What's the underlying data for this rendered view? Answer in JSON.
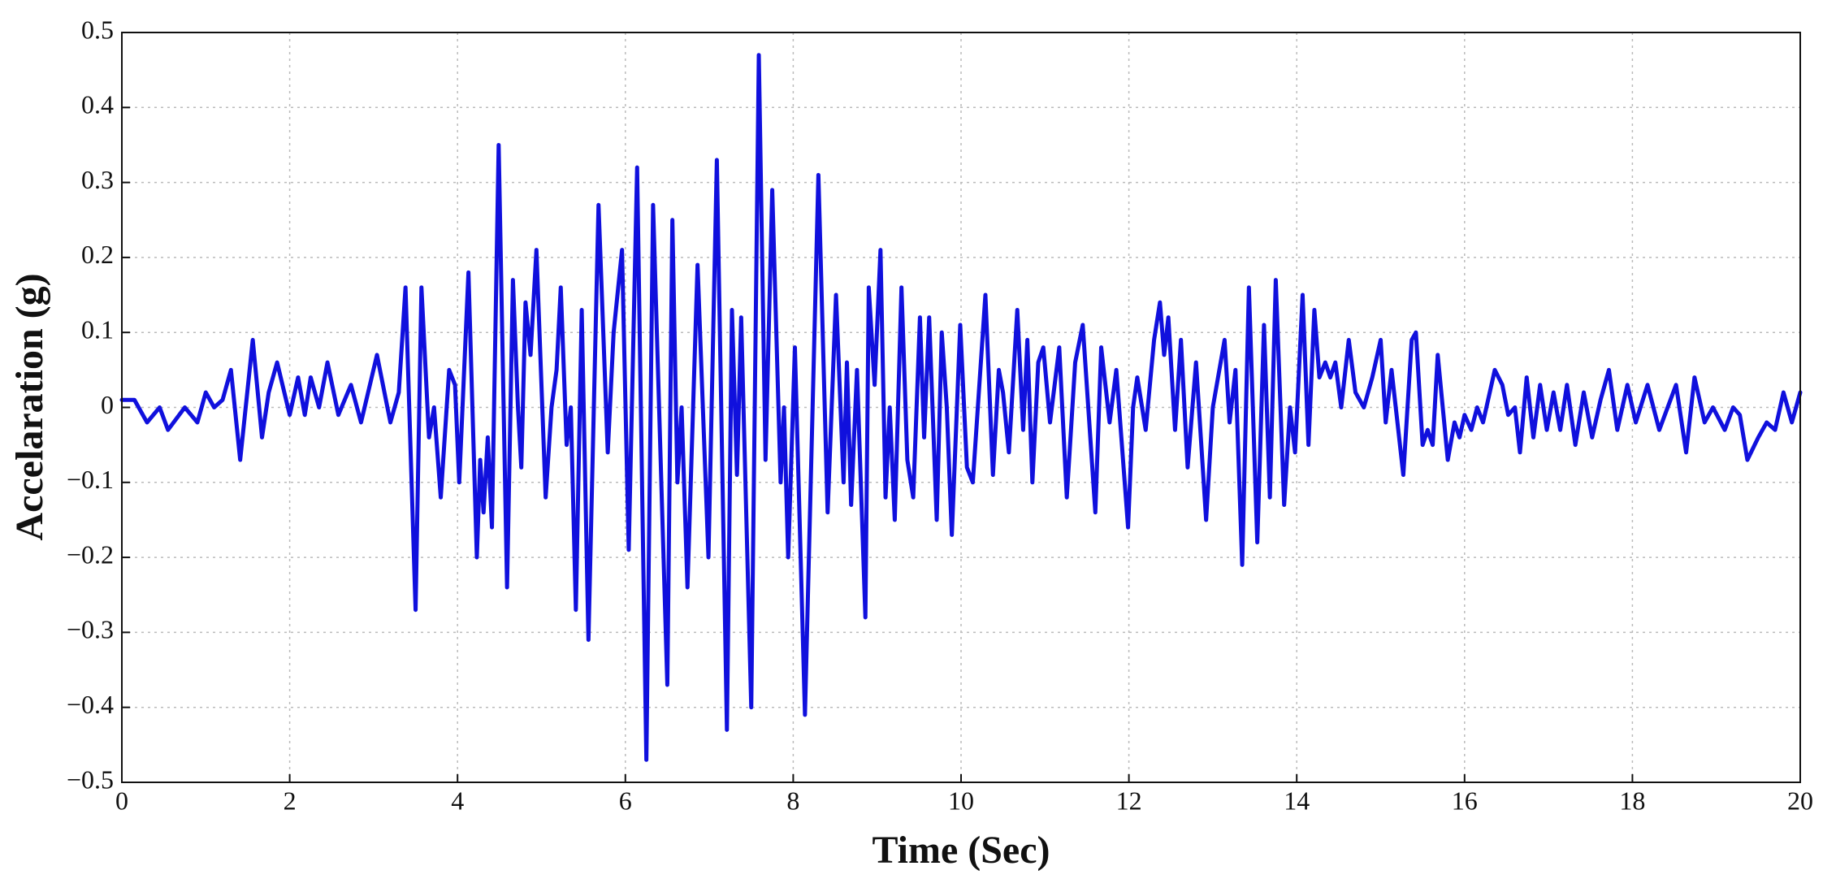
{
  "chart_data": {
    "type": "line",
    "xlabel": "Time (Sec)",
    "ylabel": "Accelaration (g)",
    "color": "#1010dd",
    "grid": true,
    "xlim": [
      0,
      20
    ],
    "ylim": [
      -0.5,
      0.5
    ],
    "xticks": [
      0,
      2,
      4,
      6,
      8,
      10,
      12,
      14,
      16,
      18,
      20
    ],
    "yticks": [
      {
        "value": -0.5,
        "label": "−0.5"
      },
      {
        "value": -0.4,
        "label": "−0.4"
      },
      {
        "value": -0.3,
        "label": "−0.3"
      },
      {
        "value": -0.2,
        "label": "−0.2"
      },
      {
        "value": -0.1,
        "label": "−0.1"
      },
      0,
      0.1,
      0.2,
      0.3,
      0.4,
      0.5
    ],
    "x": [
      0,
      0.15,
      0.3,
      0.45,
      0.55,
      0.75,
      0.9,
      1.0,
      1.1,
      1.2,
      1.3,
      1.41,
      1.56,
      1.67,
      1.75,
      1.85,
      2.0,
      2.1,
      2.18,
      2.25,
      2.35,
      2.45,
      2.58,
      2.73,
      2.85,
      3.04,
      3.2,
      3.3,
      3.38,
      3.5,
      3.57,
      3.66,
      3.72,
      3.8,
      3.9,
      3.97,
      4.02,
      4.13,
      4.23,
      4.27,
      4.31,
      4.36,
      4.41,
      4.49,
      4.59,
      4.66,
      4.72,
      4.76,
      4.81,
      4.87,
      4.94,
      5.05,
      5.12,
      5.18,
      5.23,
      5.3,
      5.35,
      5.41,
      5.48,
      5.56,
      5.68,
      5.79,
      5.86,
      5.96,
      6.04,
      6.14,
      6.25,
      6.33,
      6.5,
      6.56,
      6.62,
      6.67,
      6.74,
      6.86,
      6.99,
      7.09,
      7.21,
      7.27,
      7.33,
      7.38,
      7.5,
      7.59,
      7.67,
      7.75,
      7.85,
      7.89,
      7.94,
      8.02,
      8.14,
      8.3,
      8.41,
      8.51,
      8.6,
      8.64,
      8.69,
      8.76,
      8.86,
      8.9,
      8.97,
      9.04,
      9.1,
      9.15,
      9.21,
      9.29,
      9.36,
      9.43,
      9.51,
      9.56,
      9.62,
      9.71,
      9.77,
      9.83,
      9.89,
      9.99,
      10.07,
      10.14,
      10.29,
      10.38,
      10.45,
      10.5,
      10.57,
      10.67,
      10.74,
      10.79,
      10.85,
      10.92,
      10.98,
      11.06,
      11.17,
      11.26,
      11.36,
      11.45,
      11.6,
      11.67,
      11.77,
      11.85,
      11.99,
      12.05,
      12.1,
      12.2,
      12.3,
      12.37,
      12.42,
      12.47,
      12.55,
      12.62,
      12.7,
      12.8,
      12.92,
      13.0,
      13.14,
      13.2,
      13.27,
      13.35,
      13.43,
      13.53,
      13.61,
      13.68,
      13.75,
      13.85,
      13.92,
      13.98,
      14.07,
      14.14,
      14.21,
      14.27,
      14.34,
      14.4,
      14.46,
      14.53,
      14.62,
      14.7,
      14.8,
      14.9,
      15.0,
      15.06,
      15.13,
      15.27,
      15.37,
      15.42,
      15.5,
      15.56,
      15.62,
      15.68,
      15.8,
      15.88,
      15.94,
      16.0,
      16.08,
      16.15,
      16.22,
      16.28,
      16.36,
      16.45,
      16.52,
      16.6,
      16.66,
      16.74,
      16.82,
      16.9,
      16.98,
      17.06,
      17.14,
      17.22,
      17.32,
      17.42,
      17.52,
      17.62,
      17.72,
      17.82,
      17.94,
      18.04,
      18.18,
      18.32,
      18.52,
      18.64,
      18.74,
      18.86,
      18.96,
      19.1,
      19.2,
      19.28,
      19.37,
      19.5,
      19.6,
      19.7,
      19.8,
      19.9,
      20.0
    ],
    "values": [
      0.01,
      0.01,
      -0.02,
      0.0,
      -0.03,
      0.0,
      -0.02,
      0.02,
      0.0,
      0.01,
      0.05,
      -0.07,
      0.09,
      -0.04,
      0.02,
      0.06,
      -0.01,
      0.04,
      -0.01,
      0.04,
      0.0,
      0.06,
      -0.01,
      0.03,
      -0.02,
      0.07,
      -0.02,
      0.02,
      0.16,
      -0.27,
      0.16,
      -0.04,
      0.0,
      -0.12,
      0.05,
      0.03,
      -0.1,
      0.18,
      -0.2,
      -0.07,
      -0.14,
      -0.04,
      -0.16,
      0.35,
      -0.24,
      0.17,
      0.0,
      -0.08,
      0.14,
      0.07,
      0.21,
      -0.12,
      0.0,
      0.05,
      0.16,
      -0.05,
      0.0,
      -0.27,
      0.13,
      -0.31,
      0.27,
      -0.06,
      0.1,
      0.21,
      -0.19,
      0.32,
      -0.47,
      0.27,
      -0.37,
      0.25,
      -0.1,
      0.0,
      -0.24,
      0.19,
      -0.2,
      0.33,
      -0.43,
      0.13,
      -0.09,
      0.12,
      -0.4,
      0.47,
      -0.07,
      0.29,
      -0.1,
      0.0,
      -0.2,
      0.08,
      -0.41,
      0.31,
      -0.14,
      0.15,
      -0.1,
      0.06,
      -0.13,
      0.05,
      -0.28,
      0.16,
      0.03,
      0.21,
      -0.12,
      0.0,
      -0.15,
      0.16,
      -0.07,
      -0.12,
      0.12,
      -0.04,
      0.12,
      -0.15,
      0.1,
      0.0,
      -0.17,
      0.11,
      -0.08,
      -0.1,
      0.15,
      -0.09,
      0.05,
      0.02,
      -0.06,
      0.13,
      -0.03,
      0.09,
      -0.1,
      0.06,
      0.08,
      -0.02,
      0.08,
      -0.12,
      0.06,
      0.11,
      -0.14,
      0.08,
      -0.02,
      0.05,
      -0.16,
      0.0,
      0.04,
      -0.03,
      0.09,
      0.14,
      0.07,
      0.12,
      -0.03,
      0.09,
      -0.08,
      0.06,
      -0.15,
      0.0,
      0.09,
      -0.02,
      0.05,
      -0.21,
      0.16,
      -0.18,
      0.11,
      -0.12,
      0.17,
      -0.13,
      0.0,
      -0.06,
      0.15,
      -0.05,
      0.13,
      0.04,
      0.06,
      0.04,
      0.06,
      0.0,
      0.09,
      0.02,
      0.0,
      0.04,
      0.09,
      -0.02,
      0.05,
      -0.09,
      0.09,
      0.1,
      -0.05,
      -0.03,
      -0.05,
      0.07,
      -0.07,
      -0.02,
      -0.04,
      -0.01,
      -0.03,
      0.0,
      -0.02,
      0.01,
      0.05,
      0.03,
      -0.01,
      0.0,
      -0.06,
      0.04,
      -0.04,
      0.03,
      -0.03,
      0.02,
      -0.03,
      0.03,
      -0.05,
      0.02,
      -0.04,
      0.01,
      0.05,
      -0.03,
      0.03,
      -0.02,
      0.03,
      -0.03,
      0.03,
      -0.06,
      0.04,
      -0.02,
      0.0,
      -0.03,
      0.0,
      -0.01,
      -0.07,
      -0.04,
      -0.02,
      -0.03,
      0.02,
      -0.02,
      0.02
    ]
  }
}
